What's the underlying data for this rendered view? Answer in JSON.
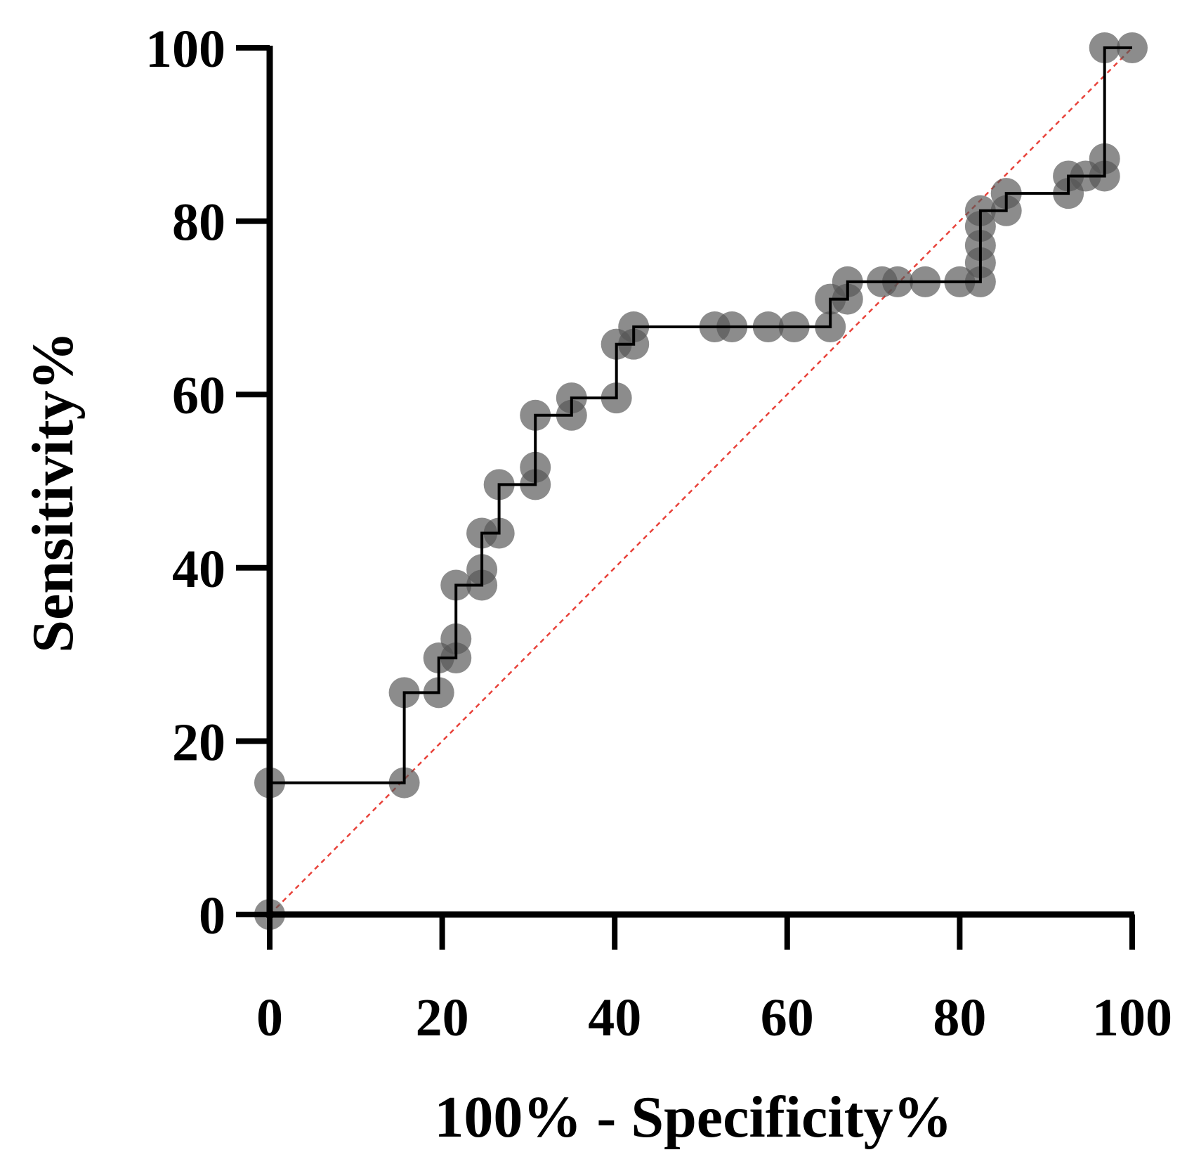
{
  "chart_data": {
    "type": "line",
    "title": "",
    "xlabel": "100% - Specificity%",
    "ylabel": "Sensitivity%",
    "xlim": [
      0,
      100
    ],
    "ylim": [
      0,
      100
    ],
    "xticks": [
      "0",
      "20",
      "40",
      "60",
      "80",
      "100"
    ],
    "yticks": [
      "0",
      "20",
      "40",
      "60",
      "80",
      "100"
    ],
    "grid": false,
    "legend": "none",
    "colors": {
      "curve": "#000000",
      "points": "#555555",
      "reference": "#e8423a",
      "axis": "#000000"
    },
    "series": [
      {
        "name": "ROC curve",
        "style": "step",
        "points": [
          [
            0,
            0
          ],
          [
            0,
            15.2
          ],
          [
            15.6,
            15.2
          ],
          [
            15.6,
            25.6
          ],
          [
            19.6,
            25.6
          ],
          [
            19.6,
            29.6
          ],
          [
            21.6,
            29.6
          ],
          [
            21.6,
            31.8
          ],
          [
            21.6,
            38.0
          ],
          [
            24.6,
            38.0
          ],
          [
            24.6,
            39.8
          ],
          [
            24.6,
            44.0
          ],
          [
            26.6,
            44.0
          ],
          [
            26.6,
            49.6
          ],
          [
            30.8,
            49.6
          ],
          [
            30.8,
            51.6
          ],
          [
            30.8,
            57.6
          ],
          [
            35.0,
            57.6
          ],
          [
            35.0,
            59.6
          ],
          [
            40.2,
            59.6
          ],
          [
            40.2,
            65.8
          ],
          [
            42.2,
            65.8
          ],
          [
            42.2,
            67.8
          ],
          [
            51.6,
            67.8
          ],
          [
            53.6,
            67.8
          ],
          [
            57.8,
            67.8
          ],
          [
            60.8,
            67.8
          ],
          [
            65.0,
            67.8
          ],
          [
            65.0,
            71.0
          ],
          [
            67.0,
            71.0
          ],
          [
            67.0,
            73.0
          ],
          [
            71.0,
            73.0
          ],
          [
            72.8,
            73.0
          ],
          [
            76.0,
            73.0
          ],
          [
            80.0,
            73.0
          ],
          [
            82.4,
            73.0
          ],
          [
            82.4,
            75.2
          ],
          [
            82.4,
            77.2
          ],
          [
            82.4,
            79.4
          ],
          [
            82.4,
            81.2
          ],
          [
            85.4,
            81.2
          ],
          [
            85.4,
            83.2
          ],
          [
            92.6,
            83.2
          ],
          [
            92.6,
            85.2
          ],
          [
            94.6,
            85.2
          ],
          [
            96.8,
            85.2
          ],
          [
            96.8,
            87.2
          ],
          [
            96.8,
            100
          ],
          [
            100,
            100
          ]
        ]
      },
      {
        "name": "Reference line",
        "style": "dashed",
        "points": [
          [
            0,
            0
          ],
          [
            100,
            100
          ]
        ]
      }
    ]
  }
}
